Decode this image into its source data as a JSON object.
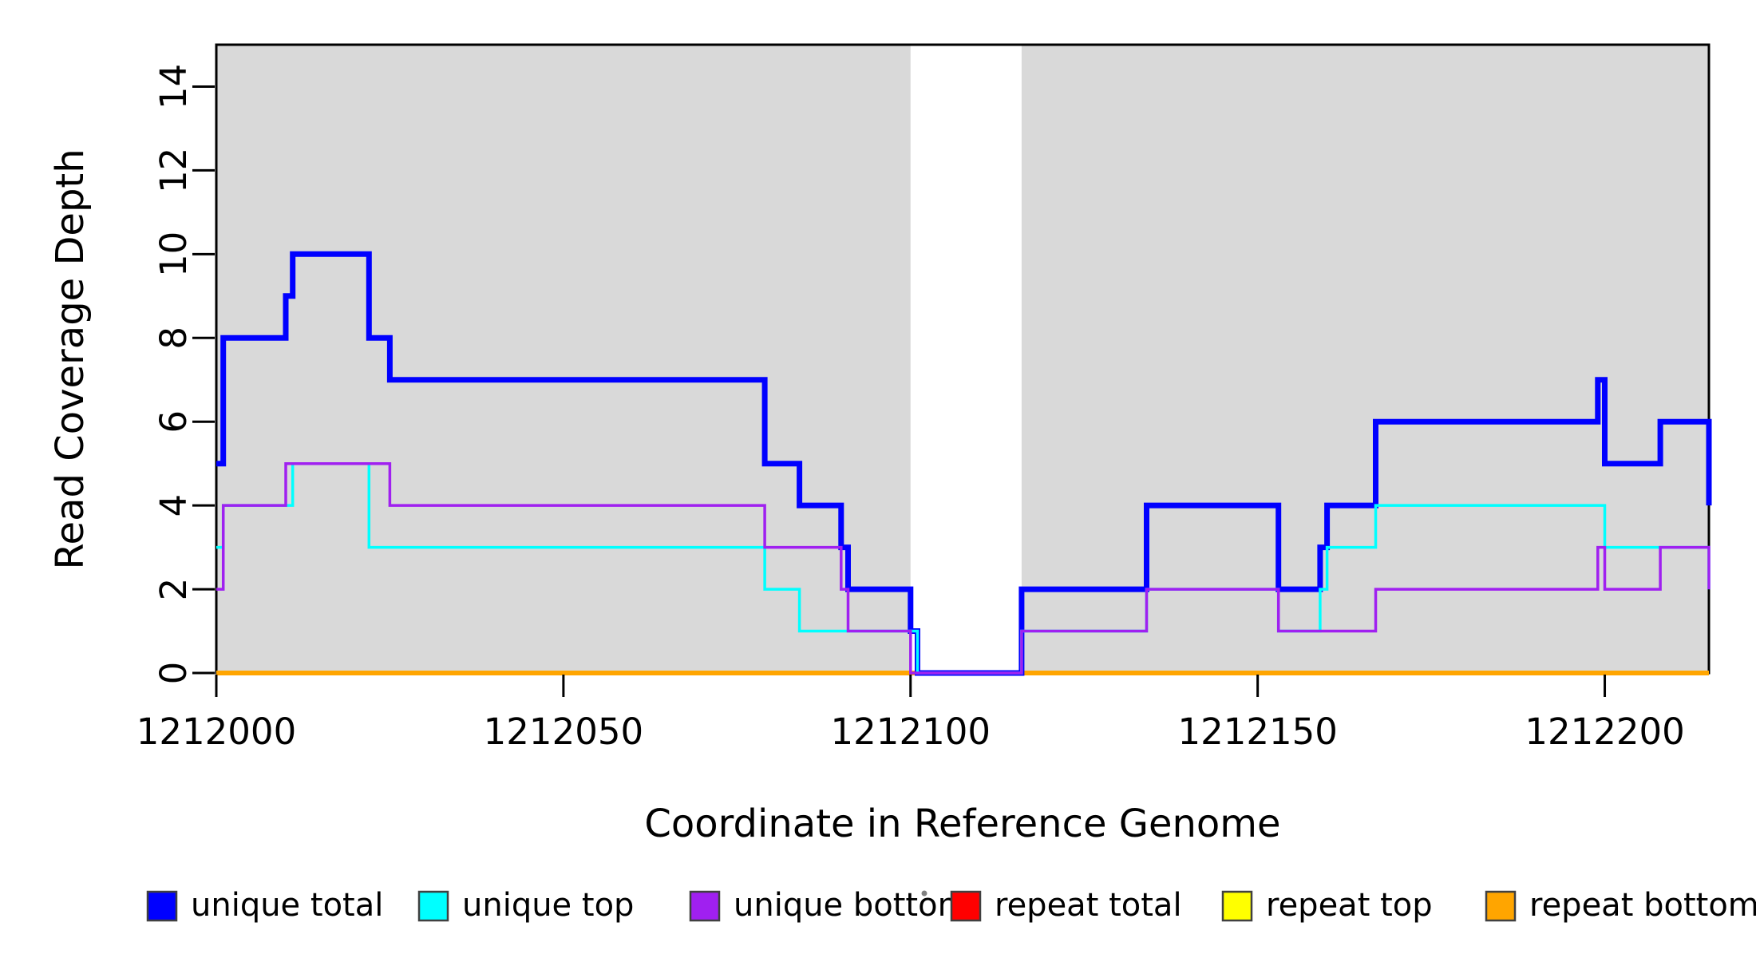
{
  "figure": {
    "background": "#ffffff",
    "plot_background_gap": "#ffffff"
  },
  "chart_data": {
    "type": "line",
    "subtype": "step-after",
    "xlabel": "Coordinate in Reference Genome",
    "ylabel": "Read Coverage Depth",
    "x_range": [
      1212000,
      1212215
    ],
    "y_range": [
      0,
      15
    ],
    "grid": false,
    "legend_position": "bottom-horizontal",
    "x_ticks": [
      {
        "value": 1212000,
        "label": "1212000"
      },
      {
        "value": 1212050,
        "label": "1212050"
      },
      {
        "value": 1212100,
        "label": "1212100"
      },
      {
        "value": 1212150,
        "label": "1212150"
      },
      {
        "value": 1212200,
        "label": "1212200"
      }
    ],
    "y_ticks": [
      {
        "value": 0,
        "label": "0"
      },
      {
        "value": 2,
        "label": "2"
      },
      {
        "value": 4,
        "label": "4"
      },
      {
        "value": 6,
        "label": "6"
      },
      {
        "value": 8,
        "label": "8"
      },
      {
        "value": 10,
        "label": "10"
      },
      {
        "value": 12,
        "label": "12"
      },
      {
        "value": 14,
        "label": "14"
      }
    ],
    "shaded_regions": [
      [
        1212000,
        1212100
      ],
      [
        1212116,
        1212215
      ]
    ],
    "shade_color": "#d9d9d9",
    "gap_region": [
      1212100,
      1212116
    ],
    "series": [
      {
        "name": "repeat total",
        "color": "#ff0000",
        "line_width": 4,
        "points": [
          [
            1212000,
            0
          ],
          [
            1212215,
            0
          ]
        ]
      },
      {
        "name": "repeat top",
        "color": "#ffff00",
        "line_width": 4,
        "points": [
          [
            1212000,
            0
          ],
          [
            1212215,
            0
          ]
        ]
      },
      {
        "name": "repeat bottom",
        "color": "#ffa500",
        "line_width": 6,
        "points": [
          [
            1212000,
            0
          ],
          [
            1212215,
            0
          ]
        ]
      },
      {
        "name": "unique total",
        "color": "#0000ff",
        "line_width": 7,
        "points": [
          [
            1212000,
            5
          ],
          [
            1212001,
            8
          ],
          [
            1212010,
            9
          ],
          [
            1212011,
            10
          ],
          [
            1212022,
            8
          ],
          [
            1212025,
            7
          ],
          [
            1212079,
            5
          ],
          [
            1212084,
            4
          ],
          [
            1212090,
            3
          ],
          [
            1212091,
            2
          ],
          [
            1212100,
            1
          ],
          [
            1212101,
            0
          ],
          [
            1212116,
            2
          ],
          [
            1212134,
            4
          ],
          [
            1212153,
            2
          ],
          [
            1212159,
            3
          ],
          [
            1212160,
            4
          ],
          [
            1212167,
            6
          ],
          [
            1212199,
            7
          ],
          [
            1212200,
            5
          ],
          [
            1212208,
            6
          ],
          [
            1212215,
            4
          ]
        ]
      },
      {
        "name": "unique top",
        "color": "#00ffff",
        "line_width": 3.5,
        "points": [
          [
            1212000,
            3
          ],
          [
            1212001,
            4
          ],
          [
            1212011,
            5
          ],
          [
            1212022,
            3
          ],
          [
            1212079,
            2
          ],
          [
            1212084,
            1
          ],
          [
            1212101,
            0
          ],
          [
            1212116,
            1
          ],
          [
            1212134,
            2
          ],
          [
            1212153,
            1
          ],
          [
            1212159,
            2
          ],
          [
            1212160,
            3
          ],
          [
            1212167,
            4
          ],
          [
            1212200,
            3
          ],
          [
            1212215,
            2
          ]
        ]
      },
      {
        "name": "unique bottom",
        "color": "#a020f0",
        "line_width": 3.5,
        "points": [
          [
            1212000,
            2
          ],
          [
            1212001,
            4
          ],
          [
            1212010,
            5
          ],
          [
            1212025,
            4
          ],
          [
            1212079,
            3
          ],
          [
            1212090,
            2
          ],
          [
            1212091,
            1
          ],
          [
            1212100,
            0
          ],
          [
            1212116,
            1
          ],
          [
            1212134,
            2
          ],
          [
            1212153,
            1
          ],
          [
            1212167,
            2
          ],
          [
            1212199,
            3
          ],
          [
            1212200,
            2
          ],
          [
            1212208,
            3
          ],
          [
            1212215,
            2
          ]
        ]
      }
    ]
  },
  "legend": {
    "items": [
      {
        "label": "unique total",
        "color": "#0000ff"
      },
      {
        "label": "unique top",
        "color": "#00ffff"
      },
      {
        "label": "unique bottom",
        "color": "#a020f0"
      },
      {
        "label": "repeat total",
        "color": "#ff0000"
      },
      {
        "label": "repeat top",
        "color": "#ffff00"
      },
      {
        "label": "repeat bottom",
        "color": "#ffa500"
      }
    ]
  }
}
